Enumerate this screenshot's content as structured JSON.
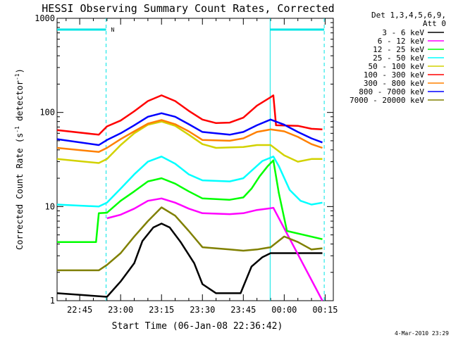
{
  "chart_data": {
    "type": "line",
    "title": "HESSI Observing Summary Count Rates, Corrected",
    "xlabel": "Start Time (06-Jan-08 22:36:42)",
    "ylabel": "Corrected Count Rate (s",
    "ylabel_sup1": "-1",
    "ylabel_mid": " detector",
    "ylabel_sup2": "-1",
    "ylabel_end": ")",
    "y_scale": "log",
    "ylim": [
      1,
      1000
    ],
    "xlim": [
      "22:36:42",
      "00:18:00"
    ],
    "x_tick_labels": [
      "22:45",
      "23:00",
      "23:15",
      "23:30",
      "23:45",
      "00:00",
      "00:15"
    ],
    "y_tick_labels": [
      "1",
      "10",
      "100",
      "1000"
    ],
    "legend_header": [
      "Det 1,3,4,5,6,9,",
      "Att 0"
    ],
    "timestamp": "4-Mar-2010 23:29",
    "flag_label": "N",
    "night_intervals": [
      [
        "22:36:42",
        "22:54:40"
      ],
      [
        "23:54:50",
        "00:14:40"
      ]
    ],
    "series": [
      {
        "name": "3 - 6 keV",
        "color": "#000000",
        "points": [
          [
            "22:36:42",
            1.2
          ],
          [
            "22:55",
            1.1
          ],
          [
            "23:00",
            1.6
          ],
          [
            "23:05",
            2.5
          ],
          [
            "23:08",
            4.3
          ],
          [
            "23:12",
            6.0
          ],
          [
            "23:15",
            6.6
          ],
          [
            "23:18",
            6.0
          ],
          [
            "23:22",
            4.2
          ],
          [
            "23:27",
            2.5
          ],
          [
            "23:30",
            1.5
          ],
          [
            "23:35",
            1.2
          ],
          [
            "23:44",
            1.2
          ],
          [
            "23:48",
            2.3
          ],
          [
            "23:52",
            2.9
          ],
          [
            "23:55",
            3.2
          ],
          [
            "00:14",
            3.2
          ]
        ]
      },
      {
        "name": "6 - 12 keV",
        "color": "#ff00ff",
        "points": [
          [
            "22:55",
            7.5
          ],
          [
            "23:00",
            8.2
          ],
          [
            "23:05",
            9.5
          ],
          [
            "23:10",
            11.5
          ],
          [
            "23:15",
            12.2
          ],
          [
            "23:20",
            11.0
          ],
          [
            "23:25",
            9.5
          ],
          [
            "23:30",
            8.5
          ],
          [
            "23:40",
            8.3
          ],
          [
            "23:45",
            8.5
          ],
          [
            "23:50",
            9.2
          ],
          [
            "23:55",
            9.6
          ],
          [
            "23:56",
            9.7
          ],
          [
            "00:14",
            1.0
          ]
        ]
      },
      {
        "name": "12 - 25 keV",
        "color": "#00ff00",
        "points": [
          [
            "22:36:42",
            4.2
          ],
          [
            "22:51",
            4.2
          ],
          [
            "22:52",
            8.5
          ],
          [
            "22:55",
            8.6
          ],
          [
            "23:00",
            11.5
          ],
          [
            "23:05",
            14.5
          ],
          [
            "23:10",
            18.5
          ],
          [
            "23:15",
            20.0
          ],
          [
            "23:20",
            17.5
          ],
          [
            "23:25",
            14.5
          ],
          [
            "23:30",
            12.2
          ],
          [
            "23:40",
            11.8
          ],
          [
            "23:45",
            12.5
          ],
          [
            "23:48",
            15.5
          ],
          [
            "23:51",
            21.0
          ],
          [
            "23:54",
            27.0
          ],
          [
            "23:56",
            31.0
          ],
          [
            "23:58",
            14.0
          ],
          [
            "00:01",
            5.5
          ],
          [
            "00:14",
            4.5
          ]
        ]
      },
      {
        "name": "25 - 50 keV",
        "color": "#00ffff",
        "points": [
          [
            "22:36:42",
            10.5
          ],
          [
            "22:52",
            10.0
          ],
          [
            "22:55",
            11.0
          ],
          [
            "23:00",
            15.5
          ],
          [
            "23:05",
            22.0
          ],
          [
            "23:10",
            30.0
          ],
          [
            "23:15",
            34.0
          ],
          [
            "23:20",
            28.5
          ],
          [
            "23:25",
            22.0
          ],
          [
            "23:30",
            19.0
          ],
          [
            "23:40",
            18.5
          ],
          [
            "23:45",
            20.0
          ],
          [
            "23:48",
            24.0
          ],
          [
            "23:52",
            30.5
          ],
          [
            "23:56",
            34.0
          ],
          [
            "23:58",
            27.0
          ],
          [
            "00:02",
            15.0
          ],
          [
            "00:06",
            11.5
          ],
          [
            "00:10",
            10.5
          ],
          [
            "00:14",
            11.0
          ]
        ]
      },
      {
        "name": "50 - 100 keV",
        "color": "#d2d200",
        "points": [
          [
            "22:36:42",
            32.0
          ],
          [
            "22:52",
            29.0
          ],
          [
            "22:55",
            32.0
          ],
          [
            "23:00",
            45.0
          ],
          [
            "23:05",
            60.0
          ],
          [
            "23:10",
            74.0
          ],
          [
            "23:15",
            80.0
          ],
          [
            "23:20",
            72.0
          ],
          [
            "23:25",
            58.0
          ],
          [
            "23:30",
            46.0
          ],
          [
            "23:35",
            42.0
          ],
          [
            "23:45",
            43.0
          ],
          [
            "23:50",
            45.0
          ],
          [
            "23:55",
            45.0
          ],
          [
            "00:00",
            35.0
          ],
          [
            "00:05",
            30.0
          ],
          [
            "00:10",
            32.0
          ],
          [
            "00:14",
            32.0
          ]
        ]
      },
      {
        "name": "100 - 300 keV",
        "color": "#ff0000",
        "points": [
          [
            "22:36:42",
            65.0
          ],
          [
            "22:52",
            58.0
          ],
          [
            "22:55",
            71.0
          ],
          [
            "23:00",
            82.0
          ],
          [
            "23:05",
            103.0
          ],
          [
            "23:10",
            132.0
          ],
          [
            "23:15",
            152.0
          ],
          [
            "23:20",
            132.0
          ],
          [
            "23:25",
            104.0
          ],
          [
            "23:30",
            84.0
          ],
          [
            "23:35",
            77.0
          ],
          [
            "23:40",
            78.0
          ],
          [
            "23:45",
            88.0
          ],
          [
            "23:50",
            118.0
          ],
          [
            "23:55",
            145.0
          ],
          [
            "23:56",
            152.0
          ],
          [
            "23:57",
            73.0
          ],
          [
            "00:05",
            72.0
          ],
          [
            "00:10",
            67.0
          ],
          [
            "00:14",
            66.0
          ]
        ]
      },
      {
        "name": "300 - 800 keV",
        "color": "#ff8000",
        "points": [
          [
            "22:36:42",
            42.0
          ],
          [
            "22:52",
            38.0
          ],
          [
            "22:55",
            42.0
          ],
          [
            "23:00",
            52.0
          ],
          [
            "23:05",
            63.0
          ],
          [
            "23:10",
            76.0
          ],
          [
            "23:15",
            83.0
          ],
          [
            "23:20",
            75.0
          ],
          [
            "23:25",
            63.0
          ],
          [
            "23:30",
            51.0
          ],
          [
            "23:40",
            50.0
          ],
          [
            "23:45",
            53.0
          ],
          [
            "23:50",
            62.0
          ],
          [
            "23:55",
            66.0
          ],
          [
            "00:00",
            63.0
          ],
          [
            "00:05",
            55.0
          ],
          [
            "00:10",
            46.0
          ],
          [
            "00:14",
            42.0
          ]
        ]
      },
      {
        "name": "800 - 7000 keV",
        "color": "#0000ff",
        "points": [
          [
            "22:36:42",
            52.0
          ],
          [
            "22:52",
            45.0
          ],
          [
            "22:55",
            51.0
          ],
          [
            "23:00",
            60.0
          ],
          [
            "23:05",
            73.0
          ],
          [
            "23:10",
            90.0
          ],
          [
            "23:15",
            98.0
          ],
          [
            "23:20",
            90.0
          ],
          [
            "23:25",
            75.0
          ],
          [
            "23:30",
            62.0
          ],
          [
            "23:40",
            58.0
          ],
          [
            "23:45",
            62.0
          ],
          [
            "23:50",
            73.0
          ],
          [
            "23:55",
            84.0
          ],
          [
            "00:00",
            74.0
          ],
          [
            "00:05",
            62.0
          ],
          [
            "00:10",
            53.0
          ],
          [
            "00:14",
            48.0
          ]
        ]
      },
      {
        "name": "7000 - 20000 keV",
        "color": "#808000",
        "points": [
          [
            "22:36:42",
            2.1
          ],
          [
            "22:52",
            2.1
          ],
          [
            "22:55",
            2.4
          ],
          [
            "23:00",
            3.2
          ],
          [
            "23:05",
            4.8
          ],
          [
            "23:10",
            7.0
          ],
          [
            "23:15",
            9.8
          ],
          [
            "23:20",
            8.0
          ],
          [
            "23:25",
            5.5
          ],
          [
            "23:30",
            3.7
          ],
          [
            "23:40",
            3.5
          ],
          [
            "23:45",
            3.4
          ],
          [
            "23:50",
            3.5
          ],
          [
            "23:55",
            3.7
          ],
          [
            "00:00",
            4.8
          ],
          [
            "00:05",
            4.2
          ],
          [
            "00:10",
            3.5
          ],
          [
            "00:14",
            3.6
          ]
        ]
      }
    ]
  }
}
